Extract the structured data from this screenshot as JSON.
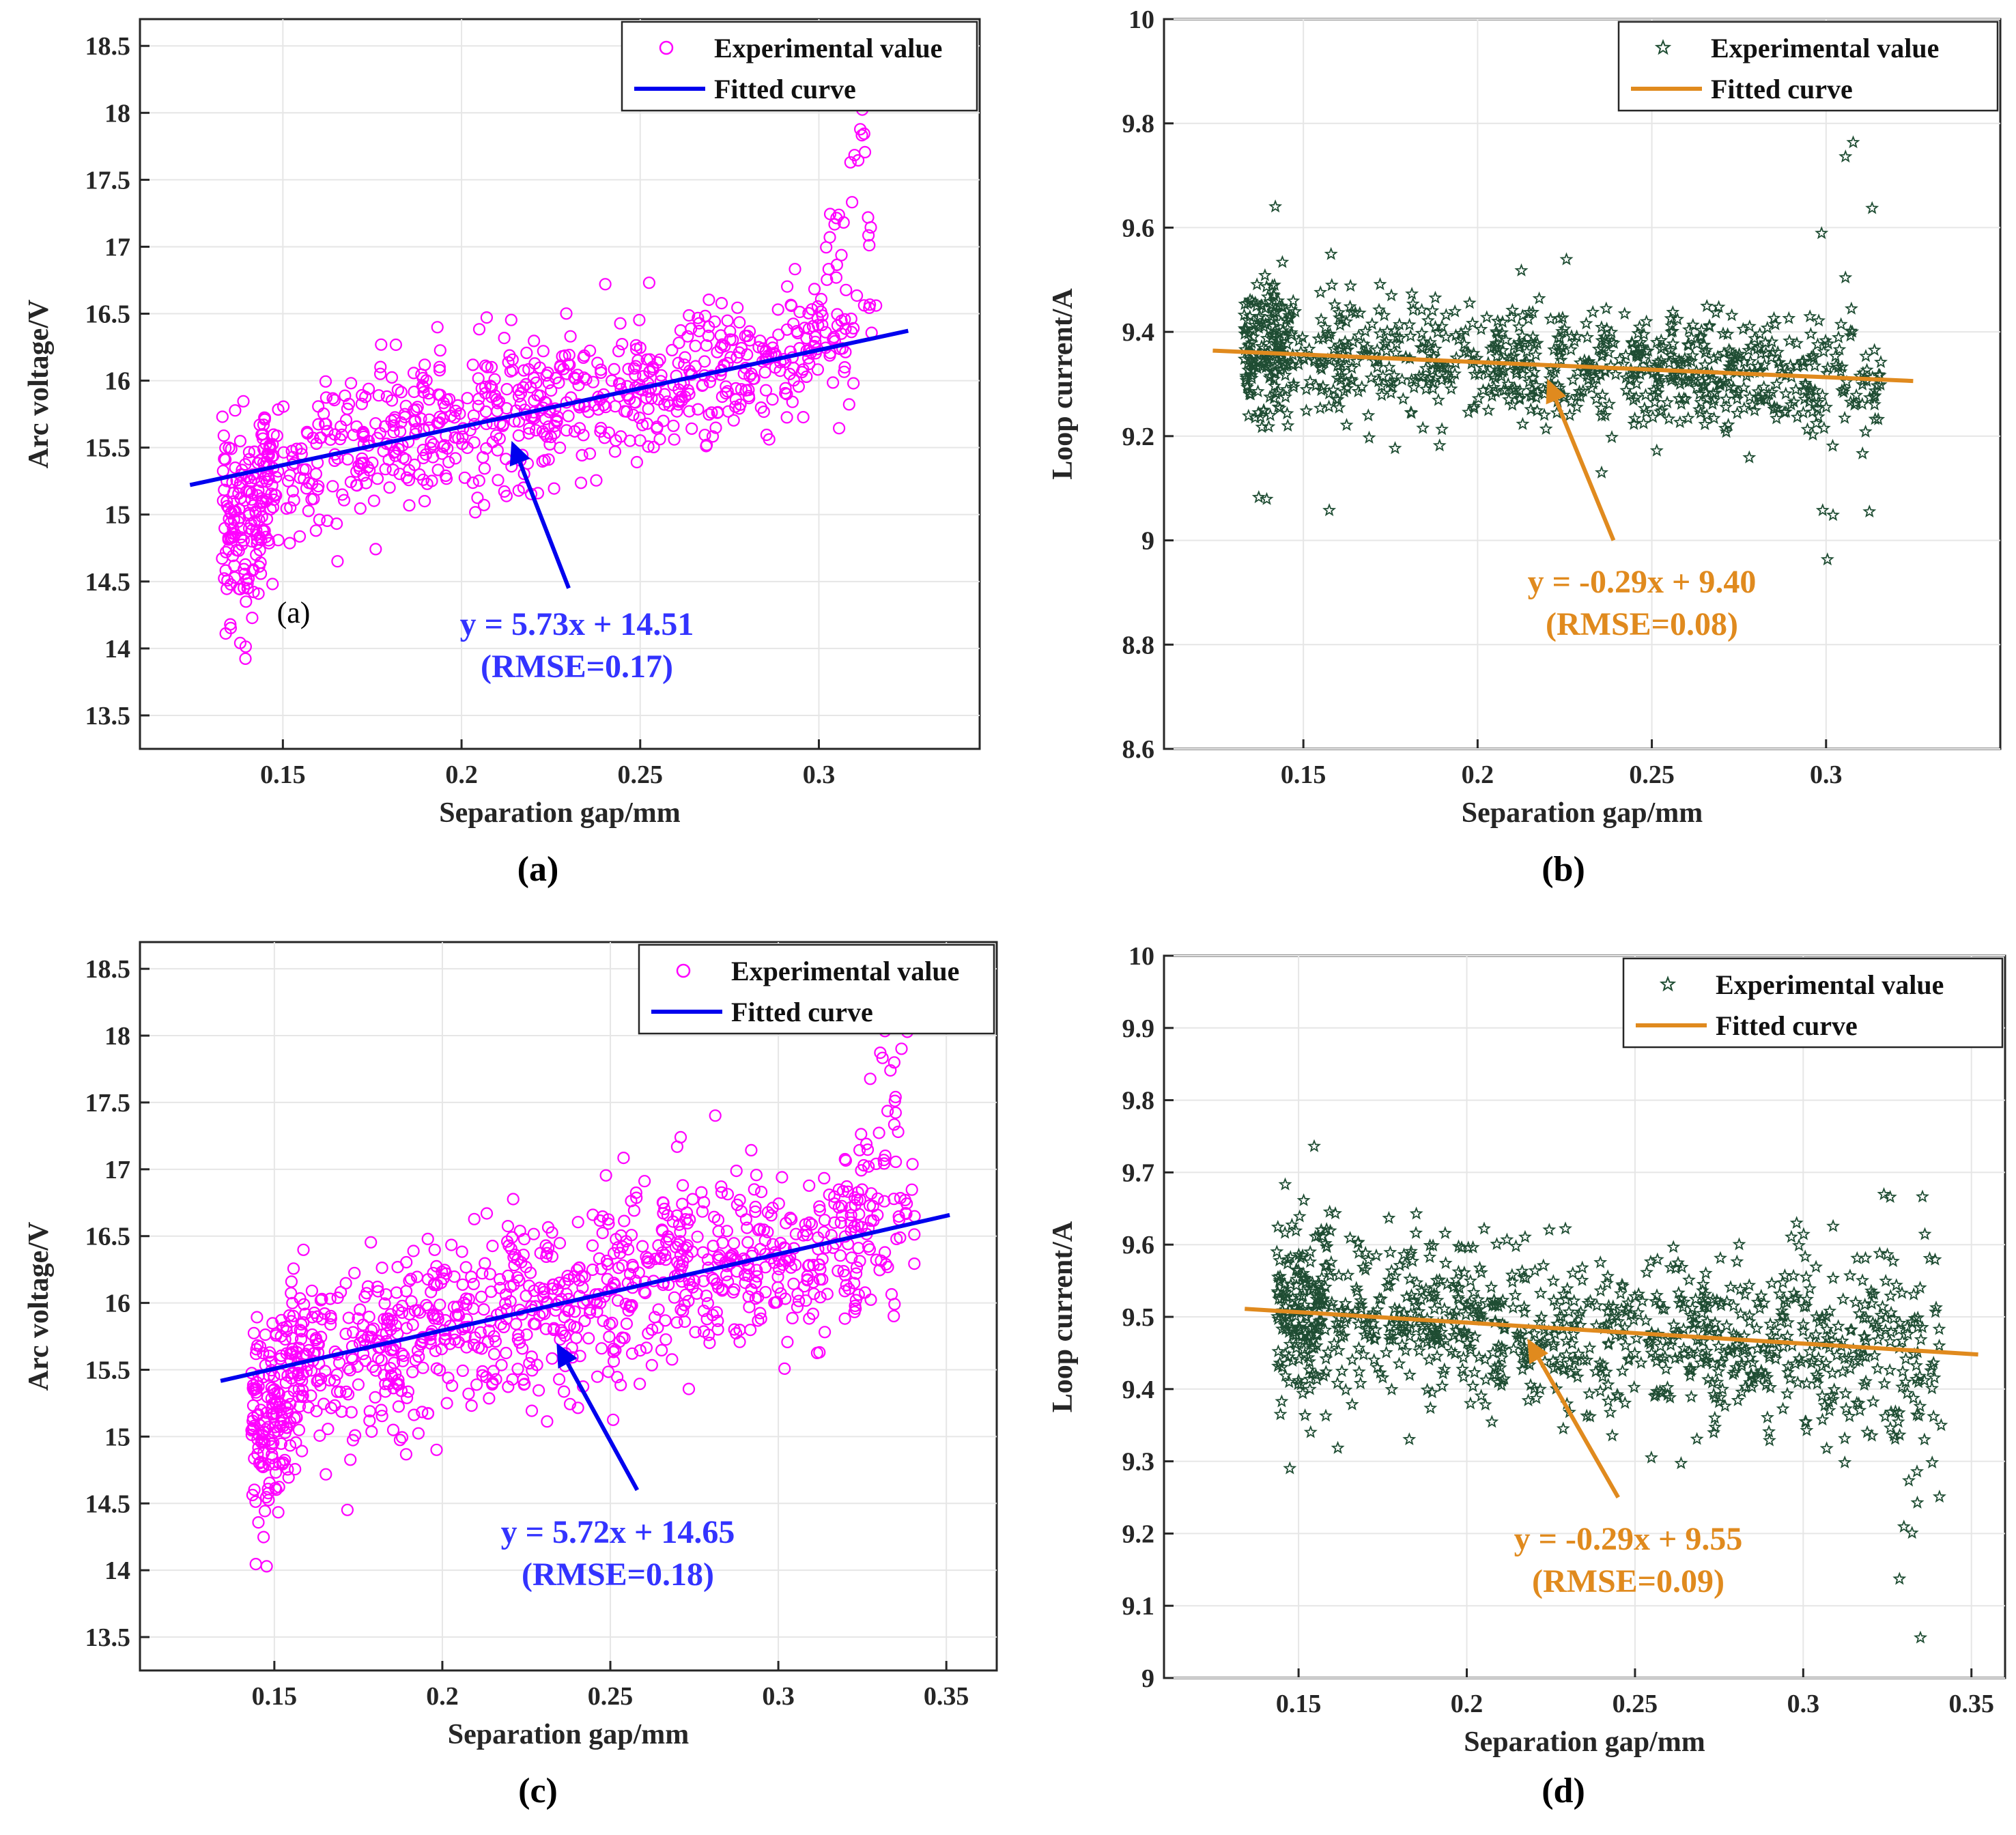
{
  "panels": [
    {
      "id": "a",
      "caption": "(a)",
      "inner_label": "(a)",
      "marker": "circle",
      "marker_color": "#ff00ff",
      "fit_color": "#0000ee",
      "eq_color": "#3333ff",
      "equation": "y = 5.73x + 14.51",
      "rmse": "(RMSE=0.17)",
      "legend": [
        "Experimental value",
        "Fitted curve"
      ],
      "xlabel": "Separation gap/mm",
      "ylabel": "Arc voltage/V",
      "xlim": [
        0.11,
        0.345
      ],
      "ylim": [
        13.25,
        18.7
      ],
      "xticks": [
        "0.15",
        "0.2",
        "0.25",
        "0.3"
      ],
      "yticks": [
        "13.5",
        "14",
        "14.5",
        "15",
        "15.5",
        "16",
        "16.5",
        "17",
        "17.5",
        "18",
        "18.5"
      ],
      "fit": {
        "slope": 5.73,
        "intercept": 14.51,
        "x_range": [
          0.124,
          0.325
        ]
      },
      "arrow": {
        "from": [
          0.23,
          14.45
        ],
        "to": [
          0.214,
          15.55
        ]
      },
      "scatter": {
        "x_range": [
          0.133,
          0.316
        ],
        "sigma": 0.28,
        "n": 900
      }
    },
    {
      "id": "b",
      "caption": "(b)",
      "marker": "star",
      "marker_color": "#1f4d33",
      "fit_color": "#e08a1e",
      "eq_color": "#e08a1e",
      "equation": "y = -0.29x + 9.40",
      "rmse": "(RMSE=0.08)",
      "legend": [
        "Experimental value",
        "Fitted curve"
      ],
      "xlabel": "Separation gap/mm",
      "ylabel": "Loop current/A",
      "xlim": [
        0.11,
        0.35
      ],
      "ylim": [
        8.6,
        10.0
      ],
      "xticks": [
        "0.15",
        "0.2",
        "0.25",
        "0.3"
      ],
      "yticks": [
        "8.6",
        "8.8",
        "9",
        "9.2",
        "9.4",
        "9.6",
        "9.8",
        "10"
      ],
      "fit": {
        "slope": -0.29,
        "intercept": 9.4,
        "x_range": [
          0.124,
          0.325
        ]
      },
      "arrow": {
        "from": [
          0.239,
          9.0
        ],
        "to": [
          0.22,
          9.31
        ]
      },
      "scatter": {
        "x_range": [
          0.133,
          0.316
        ],
        "sigma": 0.055,
        "n": 900
      }
    },
    {
      "id": "c",
      "caption": "(c)",
      "marker": "circle",
      "marker_color": "#ff00ff",
      "fit_color": "#0000ee",
      "eq_color": "#3333ff",
      "equation": "y = 5.72x + 14.65",
      "rmse": "(RMSE=0.18)",
      "legend": [
        "Experimental value",
        "Fitted curve"
      ],
      "xlabel": "Separation gap/mm",
      "ylabel": "Arc voltage/V",
      "xlim": [
        0.11,
        0.365
      ],
      "ylim": [
        13.25,
        18.7
      ],
      "xticks": [
        "0.15",
        "0.2",
        "0.25",
        "0.3",
        "0.35"
      ],
      "yticks": [
        "13.5",
        "14",
        "14.5",
        "15",
        "15.5",
        "16",
        "16.5",
        "17",
        "17.5",
        "18",
        "18.5"
      ],
      "fit": {
        "slope": 5.72,
        "intercept": 14.65,
        "x_range": [
          0.134,
          0.351
        ]
      },
      "arrow": {
        "from": [
          0.258,
          14.6
        ],
        "to": [
          0.234,
          15.7
        ]
      },
      "scatter": {
        "x_range": [
          0.143,
          0.341
        ],
        "sigma": 0.35,
        "n": 1100
      }
    },
    {
      "id": "d",
      "caption": "(d)",
      "marker": "star",
      "marker_color": "#1f4d33",
      "fit_color": "#e08a1e",
      "eq_color": "#e08a1e",
      "equation": "y = -0.29x + 9.55",
      "rmse": "(RMSE=0.09)",
      "legend": [
        "Experimental value",
        "Fitted curve"
      ],
      "xlabel": "Separation gap/mm",
      "ylabel": "Loop current/A",
      "xlim": [
        0.11,
        0.36
      ],
      "ylim": [
        9.0,
        10.0
      ],
      "xticks": [
        "0.15",
        "0.2",
        "0.25",
        "0.3",
        "0.35"
      ],
      "yticks": [
        "9",
        "9.1",
        "9.2",
        "9.3",
        "9.4",
        "9.5",
        "9.6",
        "9.7",
        "9.8",
        "9.9",
        "10"
      ],
      "fit": {
        "slope": -0.29,
        "intercept": 9.55,
        "x_range": [
          0.134,
          0.352
        ]
      },
      "arrow": {
        "from": [
          0.245,
          9.25
        ],
        "to": [
          0.218,
          9.47
        ]
      },
      "scatter": {
        "x_range": [
          0.143,
          0.341
        ],
        "sigma": 0.06,
        "n": 1000
      }
    }
  ],
  "chart_data": [
    {
      "type": "scatter",
      "panel": "a",
      "xlabel": "Separation gap/mm",
      "ylabel": "Arc voltage/V",
      "xlim": [
        0.11,
        0.345
      ],
      "ylim": [
        13.25,
        18.7
      ],
      "series": [
        {
          "name": "Experimental value",
          "x_range": [
            0.133,
            0.316
          ],
          "approx_points": 900
        },
        {
          "name": "Fitted curve",
          "equation": "y = 5.73x + 14.51",
          "rmse": 0.17
        }
      ],
      "legend": "top-right",
      "grid": true
    },
    {
      "type": "scatter",
      "panel": "b",
      "xlabel": "Separation gap/mm",
      "ylabel": "Loop current/A",
      "xlim": [
        0.11,
        0.35
      ],
      "ylim": [
        8.6,
        10.0
      ],
      "series": [
        {
          "name": "Experimental value",
          "x_range": [
            0.133,
            0.316
          ],
          "approx_points": 900
        },
        {
          "name": "Fitted curve",
          "equation": "y = -0.29x + 9.40",
          "rmse": 0.08
        }
      ],
      "legend": "top-right",
      "grid": true
    },
    {
      "type": "scatter",
      "panel": "c",
      "xlabel": "Separation gap/mm",
      "ylabel": "Arc voltage/V",
      "xlim": [
        0.11,
        0.365
      ],
      "ylim": [
        13.25,
        18.7
      ],
      "series": [
        {
          "name": "Experimental value",
          "x_range": [
            0.143,
            0.341
          ],
          "approx_points": 1100
        },
        {
          "name": "Fitted curve",
          "equation": "y = 5.72x + 14.65",
          "rmse": 0.18
        }
      ],
      "legend": "top-right",
      "grid": true
    },
    {
      "type": "scatter",
      "panel": "d",
      "xlabel": "Separation gap/mm",
      "ylabel": "Loop current/A",
      "xlim": [
        0.11,
        0.36
      ],
      "ylim": [
        9.0,
        10.0
      ],
      "series": [
        {
          "name": "Experimental value",
          "x_range": [
            0.143,
            0.341
          ],
          "approx_points": 1000
        },
        {
          "name": "Fitted curve",
          "equation": "y = -0.29x + 9.55",
          "rmse": 0.09
        }
      ],
      "legend": "top-right",
      "grid": true
    }
  ]
}
